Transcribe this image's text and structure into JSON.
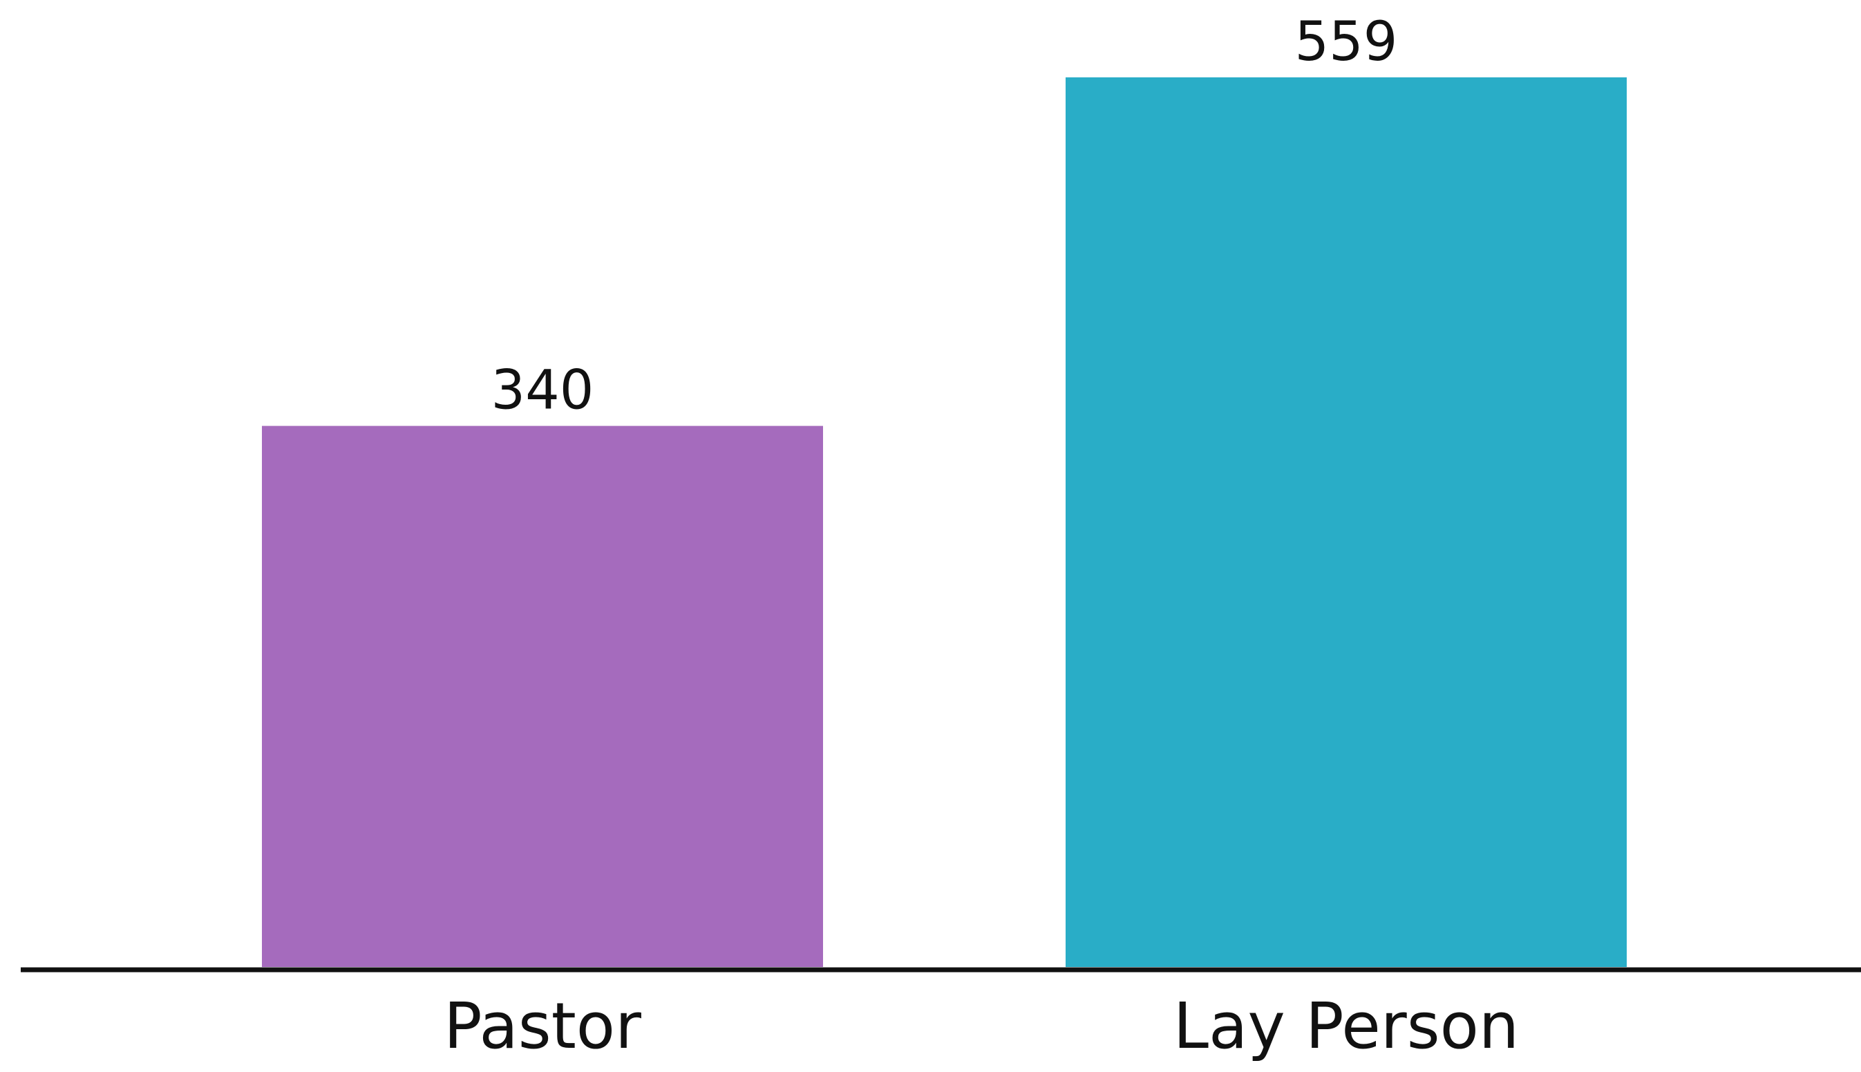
{
  "chart_data": {
    "type": "bar",
    "title": "",
    "xlabel": "",
    "ylabel": "",
    "categories": [
      "Pastor",
      "Lay Person"
    ],
    "values": [
      340,
      559
    ],
    "value_labels": [
      "340",
      "559"
    ],
    "colors": [
      "#a56bbd",
      "#29adc7"
    ],
    "ylim": [
      0,
      559
    ],
    "grid": false,
    "legend": "none",
    "axis_color": "#111111"
  }
}
